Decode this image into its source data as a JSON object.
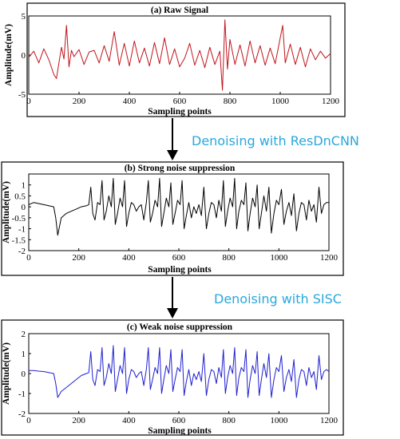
{
  "chart_data": [
    {
      "type": "line",
      "title": "(a) Raw Signal",
      "xlabel": "Sampling points",
      "ylabel": "Amplitude(mV)",
      "xlim": [
        0,
        1200
      ],
      "ylim": [
        -5,
        5
      ],
      "xticks": [
        "0",
        "200",
        "400",
        "600",
        "800",
        "1000",
        "1200"
      ],
      "yticks": [
        "5",
        "0",
        "-5"
      ],
      "color": "#c0141c",
      "series": [
        {
          "x": [
            0,
            20,
            40,
            60,
            80,
            100,
            110,
            120,
            130,
            140,
            150,
            160,
            170,
            180,
            200,
            220,
            240,
            260,
            280,
            300,
            320,
            340,
            360,
            380,
            400,
            420,
            440,
            460,
            480,
            500,
            520,
            540,
            560,
            580,
            600,
            620,
            640,
            660,
            680,
            700,
            720,
            740,
            760,
            770,
            780,
            790,
            800,
            820,
            840,
            860,
            880,
            900,
            920,
            940,
            960,
            980,
            1000,
            1010,
            1020,
            1040,
            1060,
            1080,
            1100,
            1120,
            1140,
            1160,
            1180,
            1200
          ],
          "y": [
            -0.3,
            0.5,
            -1.0,
            0.8,
            -0.6,
            -2.5,
            -3.0,
            -1.0,
            1.0,
            -0.5,
            3.8,
            -1.5,
            0.6,
            -0.2,
            0.7,
            -1.2,
            0.4,
            0.6,
            -1.0,
            1.2,
            -0.8,
            3.0,
            -1.3,
            1.5,
            -1.4,
            1.8,
            -1.0,
            0.9,
            -1.4,
            1.6,
            -1.1,
            2.2,
            -1.2,
            0.8,
            -1.5,
            -0.4,
            1.5,
            -1.3,
            0.6,
            -1.6,
            1.0,
            -1.2,
            0.5,
            -4.5,
            4.5,
            -1.8,
            2.0,
            -1.2,
            1.3,
            -1.4,
            1.8,
            -1.0,
            1.2,
            -1.3,
            0.9,
            -1.1,
            2.2,
            3.8,
            -1.0,
            1.4,
            -1.2,
            1.0,
            -1.5,
            0.8,
            -0.6,
            0.5,
            -0.4,
            0.2
          ]
        }
      ]
    },
    {
      "type": "line",
      "title": "(b) Strong noise suppression",
      "xlabel": "Sampling points",
      "ylabel": "Amplitude(mV)",
      "xlim": [
        0,
        1200
      ],
      "ylim": [
        -2,
        1.5
      ],
      "xticks": [
        "0",
        "200",
        "400",
        "600",
        "800",
        "1000",
        "1200"
      ],
      "yticks": [
        "1",
        "0.5",
        "0",
        "-0.5",
        "-1",
        "-1.5",
        "-2"
      ],
      "color": "#000000",
      "series": [
        {
          "x": [
            0,
            20,
            40,
            60,
            80,
            100,
            108,
            116,
            130,
            150,
            170,
            190,
            210,
            230,
            240,
            248,
            256,
            265,
            275,
            285,
            293,
            301,
            310,
            320,
            330,
            338,
            346,
            355,
            365,
            375,
            383,
            391,
            400,
            410,
            420,
            430,
            440,
            450,
            460,
            470,
            478,
            486,
            495,
            505,
            515,
            523,
            531,
            540,
            550,
            560,
            568,
            576,
            585,
            595,
            605,
            613,
            621,
            630,
            640,
            650,
            660,
            670,
            680,
            690,
            700,
            710,
            720,
            730,
            740,
            750,
            760,
            770,
            778,
            786,
            795,
            805,
            815,
            823,
            831,
            840,
            850,
            860,
            868,
            876,
            885,
            895,
            905,
            913,
            921,
            930,
            940,
            950,
            960,
            970,
            980,
            990,
            1000,
            1010,
            1020,
            1030,
            1040,
            1050,
            1060,
            1070,
            1080,
            1090,
            1100,
            1110,
            1120,
            1130,
            1140,
            1150,
            1160,
            1170,
            1180,
            1190,
            1200
          ],
          "y": [
            0.1,
            0.2,
            0.15,
            0.1,
            0.05,
            0.0,
            -0.5,
            -1.3,
            -0.5,
            -0.3,
            -0.2,
            -0.1,
            0.0,
            0.05,
            0.1,
            0.9,
            -0.3,
            -0.6,
            0.2,
            0.1,
            1.2,
            -0.6,
            -0.2,
            0.5,
            0.0,
            1.3,
            -0.8,
            -0.3,
            0.4,
            0.0,
            1.2,
            -0.9,
            -0.3,
            0.2,
            0.1,
            -0.2,
            0.0,
            0.1,
            -0.6,
            0.2,
            1.2,
            -0.7,
            -0.3,
            0.3,
            0.0,
            1.3,
            -0.9,
            -0.3,
            0.4,
            0.0,
            1.1,
            -0.8,
            -0.3,
            0.3,
            0.1,
            1.2,
            -1.0,
            -0.4,
            0.2,
            -0.5,
            0.0,
            -0.3,
            0.1,
            -0.4,
            0.9,
            -1.0,
            -0.3,
            0.2,
            0.1,
            -0.5,
            0.3,
            -0.2,
            1.2,
            -0.9,
            -0.2,
            0.4,
            0.0,
            1.3,
            -1.0,
            -0.2,
            0.3,
            0.1,
            1.1,
            -1.1,
            -0.3,
            0.4,
            0.0,
            1.0,
            -1.0,
            -0.3,
            0.5,
            -0.2,
            0.9,
            -1.2,
            -0.3,
            0.3,
            0.1,
            0.8,
            -0.8,
            -0.2,
            0.2,
            -0.4,
            0.6,
            -1.1,
            -0.3,
            0.2,
            0.1,
            -0.6,
            0.3,
            -0.2,
            0.1,
            -0.7,
            0.9,
            -0.3,
            0.1,
            0.2,
            0.2
          ]
        }
      ]
    },
    {
      "type": "line",
      "title": "(c) Weak noise suppression",
      "xlabel": "Sampling points",
      "ylabel": "Amplitude(mV)",
      "xlim": [
        0,
        1200
      ],
      "ylim": [
        -2,
        2
      ],
      "xticks": [
        "0",
        "200",
        "400",
        "600",
        "800",
        "1000",
        "1200"
      ],
      "yticks": [
        "2",
        "1",
        "0",
        "-1",
        "-2"
      ],
      "color": "#1f1fd0",
      "series": [
        {
          "x": [
            0,
            20,
            40,
            60,
            80,
            100,
            108,
            116,
            130,
            150,
            170,
            190,
            210,
            230,
            240,
            248,
            256,
            265,
            275,
            285,
            293,
            301,
            310,
            320,
            330,
            338,
            346,
            355,
            365,
            375,
            383,
            391,
            400,
            410,
            420,
            430,
            440,
            450,
            460,
            470,
            478,
            486,
            495,
            505,
            515,
            523,
            531,
            540,
            550,
            560,
            568,
            576,
            585,
            595,
            605,
            613,
            621,
            630,
            640,
            650,
            660,
            670,
            680,
            690,
            700,
            710,
            720,
            730,
            740,
            750,
            760,
            770,
            778,
            786,
            795,
            805,
            815,
            823,
            831,
            840,
            850,
            860,
            868,
            876,
            885,
            895,
            905,
            913,
            921,
            930,
            940,
            950,
            960,
            970,
            980,
            990,
            1000,
            1010,
            1020,
            1030,
            1040,
            1050,
            1060,
            1070,
            1080,
            1090,
            1100,
            1110,
            1120,
            1130,
            1140,
            1150,
            1160,
            1170,
            1180,
            1190,
            1200
          ],
          "y": [
            0.15,
            0.15,
            0.12,
            0.1,
            0.05,
            0.0,
            -0.5,
            -1.2,
            -0.9,
            -0.7,
            -0.5,
            -0.3,
            -0.1,
            0.0,
            0.05,
            1.1,
            -0.3,
            -0.6,
            0.2,
            0.1,
            1.3,
            -0.6,
            -0.2,
            0.5,
            0.0,
            1.4,
            -0.9,
            -0.3,
            0.4,
            0.0,
            1.3,
            -1.0,
            -0.3,
            0.2,
            0.1,
            -0.2,
            0.0,
            0.1,
            -0.6,
            0.2,
            1.3,
            -0.8,
            -0.3,
            0.3,
            0.0,
            1.3,
            -1.0,
            -0.3,
            0.4,
            0.0,
            1.2,
            -0.9,
            -0.3,
            0.3,
            0.1,
            1.2,
            -1.1,
            -0.4,
            0.2,
            -0.6,
            0.0,
            -0.3,
            0.1,
            -0.4,
            1.0,
            -1.1,
            -0.3,
            0.2,
            0.1,
            -0.5,
            0.3,
            -0.2,
            1.2,
            -1.0,
            -0.2,
            0.4,
            0.0,
            1.3,
            -1.1,
            -0.2,
            0.3,
            0.1,
            1.2,
            -1.2,
            -0.3,
            0.4,
            0.0,
            1.1,
            -1.1,
            -0.3,
            0.5,
            -0.2,
            1.0,
            -1.2,
            -0.3,
            0.3,
            0.1,
            0.9,
            -0.9,
            -0.2,
            0.2,
            -0.4,
            0.7,
            -1.2,
            -0.3,
            0.2,
            0.1,
            -0.6,
            0.3,
            -0.2,
            0.1,
            -0.8,
            0.9,
            -0.3,
            0.1,
            0.2,
            0.1
          ]
        }
      ]
    }
  ],
  "arrows": [
    {
      "label": "Denoising with ResDnCNN"
    },
    {
      "label": "Denoising with SISC"
    }
  ]
}
